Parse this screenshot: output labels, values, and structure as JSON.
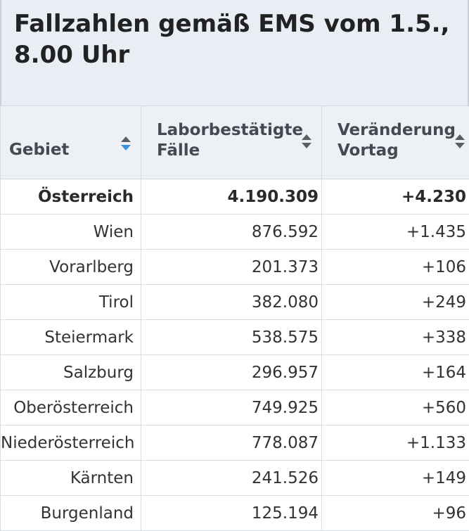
{
  "title": "Fallzahlen gemäß EMS vom 1.5., 8.00 Uhr",
  "columns": {
    "region": "Gebiet",
    "cases_line1": "Laborbestätigte",
    "cases_line2": "Fälle",
    "change_line1": "Veränderung",
    "change_line2": "Vortag"
  },
  "sort_icons": {
    "region": "sort-icon-active-ascending",
    "cases": "sort-icon",
    "change": "sort-icon"
  },
  "colors": {
    "sort_active": "#3d8fe0",
    "sort_inactive": "#5a5f66",
    "header_bg": "#edf1f6",
    "title_bg": "#e9eef4"
  },
  "rows": [
    {
      "region": "Österreich",
      "cases": "4.190.309",
      "change": "+4.230"
    },
    {
      "region": "Wien",
      "cases": "876.592",
      "change": "+1.435"
    },
    {
      "region": "Vorarlberg",
      "cases": "201.373",
      "change": "+106"
    },
    {
      "region": "Tirol",
      "cases": "382.080",
      "change": "+249"
    },
    {
      "region": "Steiermark",
      "cases": "538.575",
      "change": "+338"
    },
    {
      "region": "Salzburg",
      "cases": "296.957",
      "change": "+164"
    },
    {
      "region": "Oberösterreich",
      "cases": "749.925",
      "change": "+560"
    },
    {
      "region": "Niederösterreich",
      "cases": "778.087",
      "change": "+1.133"
    },
    {
      "region": "Kärnten",
      "cases": "241.526",
      "change": "+149"
    },
    {
      "region": "Burgenland",
      "cases": "125.194",
      "change": "+96"
    }
  ]
}
